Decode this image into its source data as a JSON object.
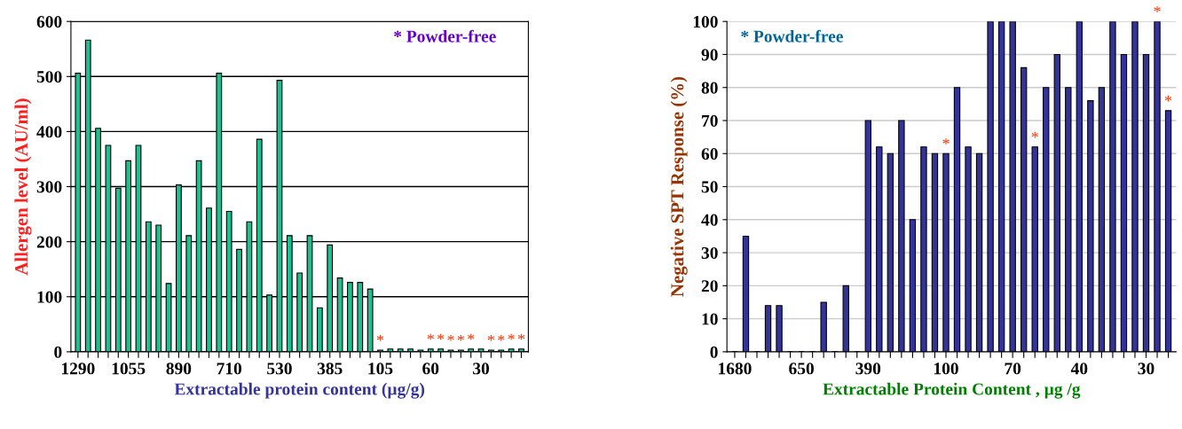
{
  "chart_data": [
    {
      "type": "bar",
      "xlabel": "Extractable protein content (µg/g)",
      "ylabel": "Allergen level (AU/ml)",
      "categories": [
        "1290",
        null,
        null,
        null,
        null,
        "1055",
        null,
        null,
        null,
        null,
        "890",
        null,
        null,
        null,
        null,
        "710",
        null,
        null,
        null,
        null,
        "530",
        null,
        null,
        null,
        null,
        "385",
        null,
        null,
        null,
        null,
        "105",
        null,
        null,
        null,
        null,
        "60",
        null,
        null,
        null,
        null,
        "30",
        null,
        null,
        null,
        null
      ],
      "values": [
        506,
        566,
        406,
        375,
        297,
        347,
        375,
        236,
        230,
        124,
        303,
        211,
        347,
        261,
        506,
        255,
        186,
        236,
        386,
        103,
        493,
        211,
        143,
        211,
        80,
        194,
        134,
        126,
        126,
        114,
        3,
        5,
        5,
        5,
        3,
        5,
        5,
        3,
        3,
        5,
        5,
        3,
        3,
        5,
        5
      ],
      "value_labels": [
        null,
        null,
        null,
        null,
        null,
        null,
        null,
        null,
        null,
        null,
        null,
        null,
        null,
        null,
        null,
        null,
        null,
        null,
        null,
        null,
        null,
        null,
        null,
        null,
        null,
        null,
        null,
        null,
        null,
        null,
        "*",
        null,
        null,
        null,
        null,
        "*",
        "*",
        "*",
        "*",
        "*",
        null,
        "*",
        "*",
        "*",
        "*"
      ],
      "color": "#1fbf8f",
      "ylim": [
        0,
        600
      ],
      "yticks": [
        0,
        100,
        200,
        300,
        400,
        500,
        600
      ],
      "grid": "y",
      "annotations": [
        "* Powder-free"
      ]
    },
    {
      "type": "bar",
      "xlabel": "Extractable Protein Content , µg /g",
      "ylabel": "Negative SPT Response (%)",
      "categories": [
        "1680",
        null,
        null,
        null,
        null,
        null,
        "650",
        null,
        null,
        null,
        null,
        null,
        "390",
        null,
        null,
        null,
        null,
        null,
        null,
        "100",
        null,
        null,
        null,
        null,
        null,
        "70",
        null,
        null,
        null,
        null,
        null,
        "40",
        null,
        null,
        null,
        null,
        null,
        "30",
        null,
        null
      ],
      "values": [
        0,
        35,
        0,
        14,
        14,
        0,
        0,
        0,
        15,
        0,
        20,
        0,
        70,
        62,
        60,
        70,
        40,
        62,
        60,
        60,
        80,
        62,
        60,
        100,
        100,
        100,
        86,
        62,
        80,
        90,
        80,
        100,
        76,
        80,
        100,
        90,
        100,
        90,
        100,
        73
      ],
      "value_labels": [
        null,
        null,
        null,
        null,
        null,
        null,
        null,
        null,
        null,
        null,
        null,
        null,
        null,
        null,
        null,
        null,
        null,
        null,
        null,
        "*",
        null,
        null,
        null,
        null,
        null,
        null,
        null,
        "*",
        null,
        null,
        null,
        null,
        null,
        null,
        null,
        null,
        null,
        null,
        "*",
        "*"
      ],
      "color": "#333399",
      "ylim": [
        0,
        100
      ],
      "yticks": [
        0,
        10,
        20,
        30,
        40,
        50,
        60,
        70,
        80,
        90,
        100
      ],
      "grid": "y",
      "annotations": [
        "* Powder-free"
      ]
    }
  ]
}
